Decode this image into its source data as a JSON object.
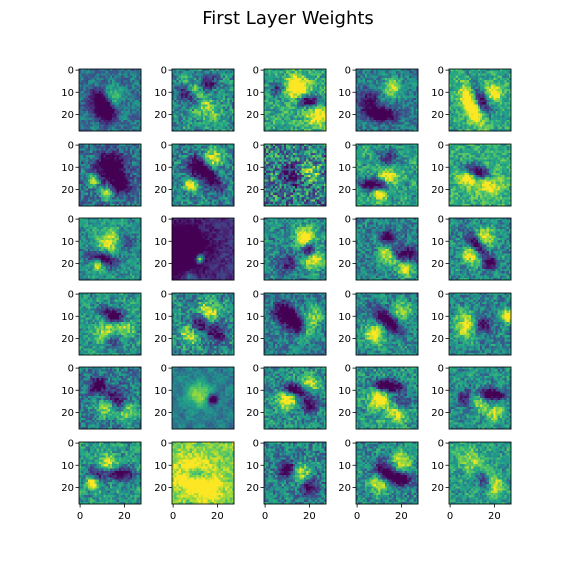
{
  "chart_data": {
    "type": "heatmap",
    "title": "First Layer Weights",
    "rows": 6,
    "cols": 5,
    "image_shape": [
      28,
      28
    ],
    "colormap": "viridis",
    "xlim": [
      0,
      27
    ],
    "ylim": [
      27,
      0
    ],
    "xticks": [
      "0",
      "20"
    ],
    "yticks": [
      "0",
      "10",
      "20"
    ],
    "panels": [
      {
        "dark": [
          [
            10,
            14,
            0.9,
            3.5,
            0
          ],
          [
            12,
            20,
            0.7,
            2.5,
            0
          ]
        ],
        "bright": [
          [
            14,
            12,
            0.6,
            3,
            0
          ]
        ],
        "base": 0.42,
        "noise": 0.12,
        "bgshift": 0.0
      },
      {
        "dark": [
          [
            8,
            12,
            0.7,
            2.5,
            0.6
          ],
          [
            16,
            6,
            0.5,
            2.5,
            0
          ]
        ],
        "bright": [
          [
            12,
            14,
            0.6,
            3,
            0.8
          ]
        ],
        "base": 0.52,
        "noise": 0.18,
        "bgshift": 0.05
      },
      {
        "dark": [
          [
            20,
            14,
            0.8,
            2,
            0.1
          ],
          [
            6,
            8,
            0.4,
            3,
            0
          ]
        ],
        "bright": [
          [
            14,
            8,
            0.7,
            4,
            0
          ],
          [
            24,
            20,
            0.5,
            4,
            0
          ]
        ],
        "base": 0.6,
        "noise": 0.18,
        "bgshift": 0.05
      },
      {
        "dark": [
          [
            11,
            20,
            0.9,
            2,
            0.05
          ],
          [
            5,
            14,
            0.5,
            3,
            0
          ]
        ],
        "bright": [
          [
            16,
            8,
            0.5,
            3,
            0
          ]
        ],
        "base": 0.45,
        "noise": 0.14,
        "bgshift": 0.0
      },
      {
        "dark": [
          [
            14,
            14,
            0.8,
            2,
            1.1
          ]
        ],
        "bright": [
          [
            10,
            16,
            0.7,
            3,
            1.1
          ],
          [
            20,
            10,
            0.5,
            3,
            0
          ]
        ],
        "base": 0.58,
        "noise": 0.16,
        "bgshift": 0.05
      },
      {
        "dark": [
          [
            14,
            10,
            0.8,
            4,
            0
          ],
          [
            18,
            18,
            0.6,
            3,
            0
          ]
        ],
        "bright": [
          [
            6,
            16,
            0.5,
            2,
            0
          ],
          [
            12,
            22,
            0.6,
            2,
            0
          ]
        ],
        "base": 0.4,
        "noise": 0.18,
        "bgshift": 0.0
      },
      {
        "dark": [
          [
            16,
            14,
            0.7,
            2.5,
            0.9
          ],
          [
            10,
            10,
            0.5,
            3,
            0
          ]
        ],
        "bright": [
          [
            8,
            18,
            0.7,
            2,
            0
          ],
          [
            18,
            6,
            0.5,
            3,
            0
          ]
        ],
        "base": 0.48,
        "noise": 0.18,
        "bgshift": 0.0
      },
      {
        "dark": [
          [
            12,
            14,
            0.4,
            3,
            0
          ]
        ],
        "bright": [
          [
            20,
            12,
            0.4,
            3,
            0
          ]
        ],
        "base": 0.45,
        "noise": 0.32,
        "bgshift": 0.0
      },
      {
        "dark": [
          [
            8,
            18,
            0.8,
            2,
            0.1
          ],
          [
            14,
            6,
            0.4,
            3,
            0
          ]
        ],
        "bright": [
          [
            10,
            22,
            0.7,
            2,
            0
          ],
          [
            14,
            14,
            0.5,
            3,
            0
          ]
        ],
        "base": 0.58,
        "noise": 0.16,
        "bgshift": 0.05
      },
      {
        "dark": [
          [
            12,
            12,
            0.9,
            2,
            0.3
          ]
        ],
        "bright": [
          [
            8,
            14,
            0.6,
            3,
            0
          ],
          [
            18,
            18,
            0.4,
            4,
            0
          ]
        ],
        "base": 0.62,
        "noise": 0.15,
        "bgshift": 0.1
      },
      {
        "dark": [
          [
            10,
            18,
            0.8,
            2,
            0.2
          ],
          [
            20,
            10,
            0.4,
            3,
            0
          ]
        ],
        "bright": [
          [
            8,
            20,
            0.7,
            2,
            0
          ],
          [
            14,
            10,
            0.5,
            4,
            0
          ]
        ],
        "base": 0.52,
        "noise": 0.14,
        "bgshift": 0.0
      },
      {
        "dark": [
          [
            4,
            14,
            0.6,
            8,
            0
          ]
        ],
        "bright": [
          [
            12,
            18,
            0.9,
            1.5,
            0
          ],
          [
            8,
            26,
            0.4,
            2,
            0
          ]
        ],
        "base": 0.2,
        "noise": 0.1,
        "bgshift": -0.1
      },
      {
        "dark": [
          [
            20,
            14,
            0.8,
            2,
            0
          ],
          [
            10,
            20,
            0.4,
            3,
            0
          ]
        ],
        "bright": [
          [
            18,
            8,
            0.7,
            3,
            0
          ],
          [
            22,
            18,
            0.6,
            3,
            0
          ]
        ],
        "base": 0.5,
        "noise": 0.16,
        "bgshift": 0.0
      },
      {
        "dark": [
          [
            14,
            8,
            0.7,
            2,
            0
          ],
          [
            22,
            16,
            0.6,
            2.5,
            0.2
          ]
        ],
        "bright": [
          [
            14,
            16,
            0.6,
            3,
            0
          ],
          [
            22,
            22,
            0.5,
            3,
            0
          ]
        ],
        "base": 0.47,
        "noise": 0.16,
        "bgshift": 0.0
      },
      {
        "dark": [
          [
            12,
            12,
            0.8,
            2,
            0.9
          ],
          [
            18,
            20,
            0.6,
            2,
            0
          ]
        ],
        "bright": [
          [
            10,
            16,
            0.6,
            3,
            0
          ],
          [
            16,
            8,
            0.5,
            3,
            0
          ]
        ],
        "base": 0.5,
        "noise": 0.16,
        "bgshift": 0.0
      },
      {
        "dark": [
          [
            16,
            10,
            0.8,
            2,
            0.4
          ],
          [
            14,
            20,
            0.5,
            3,
            0
          ]
        ],
        "bright": [
          [
            12,
            18,
            0.6,
            3,
            0
          ],
          [
            20,
            14,
            0.5,
            3,
            0
          ]
        ],
        "base": 0.55,
        "noise": 0.16,
        "bgshift": 0.0
      },
      {
        "dark": [
          [
            12,
            14,
            0.6,
            3,
            0
          ],
          [
            20,
            18,
            0.5,
            3,
            0
          ]
        ],
        "bright": [
          [
            8,
            18,
            0.5,
            3,
            0
          ],
          [
            16,
            8,
            0.5,
            3,
            0
          ]
        ],
        "base": 0.5,
        "noise": 0.2,
        "bgshift": 0.0
      },
      {
        "dark": [
          [
            14,
            14,
            0.8,
            2.5,
            0.9
          ],
          [
            8,
            8,
            0.5,
            3,
            0
          ]
        ],
        "bright": [
          [
            18,
            18,
            0.6,
            3,
            0
          ],
          [
            22,
            10,
            0.4,
            3,
            0
          ]
        ],
        "base": 0.45,
        "noise": 0.16,
        "bgshift": 0.0
      },
      {
        "dark": [
          [
            14,
            12,
            0.7,
            2.5,
            0.7
          ]
        ],
        "bright": [
          [
            8,
            18,
            0.6,
            3,
            0
          ],
          [
            20,
            8,
            0.4,
            3,
            0
          ]
        ],
        "base": 0.5,
        "noise": 0.16,
        "bgshift": 0.0
      },
      {
        "dark": [
          [
            14,
            14,
            0.6,
            3,
            0
          ]
        ],
        "bright": [
          [
            26,
            10,
            0.8,
            2,
            0
          ],
          [
            8,
            14,
            0.6,
            4,
            0
          ]
        ],
        "base": 0.48,
        "noise": 0.16,
        "bgshift": 0.0
      },
      {
        "dark": [
          [
            8,
            8,
            0.7,
            2.5,
            0
          ],
          [
            16,
            14,
            0.5,
            3,
            0
          ]
        ],
        "bright": [
          [
            12,
            18,
            0.5,
            3,
            0
          ],
          [
            22,
            20,
            0.4,
            3,
            0
          ]
        ],
        "base": 0.45,
        "noise": 0.17,
        "bgshift": 0.0
      },
      {
        "dark": [
          [
            18,
            14,
            0.8,
            1.5,
            0
          ]
        ],
        "bright": [
          [
            12,
            12,
            0.4,
            4,
            0
          ]
        ],
        "base": 0.45,
        "noise": 0.06,
        "bgshift": 0.0
      },
      {
        "dark": [
          [
            14,
            10,
            0.8,
            2,
            0.1
          ],
          [
            20,
            16,
            0.5,
            3,
            0
          ]
        ],
        "bright": [
          [
            10,
            14,
            0.6,
            3,
            0
          ],
          [
            20,
            8,
            0.5,
            3,
            0
          ]
        ],
        "base": 0.52,
        "noise": 0.17,
        "bgshift": 0.0
      },
      {
        "dark": [
          [
            14,
            8,
            0.8,
            2,
            0.1
          ],
          [
            20,
            16,
            0.4,
            3,
            0
          ]
        ],
        "bright": [
          [
            10,
            14,
            0.6,
            3,
            0
          ],
          [
            18,
            20,
            0.5,
            3,
            0
          ]
        ],
        "base": 0.55,
        "noise": 0.17,
        "bgshift": 0.0
      },
      {
        "dark": [
          [
            18,
            12,
            0.8,
            2,
            0.05
          ],
          [
            8,
            14,
            0.5,
            3,
            0
          ]
        ],
        "bright": [
          [
            12,
            14,
            0.6,
            3,
            0
          ],
          [
            20,
            20,
            0.4,
            3,
            0
          ]
        ],
        "base": 0.52,
        "noise": 0.16,
        "bgshift": 0.0
      },
      {
        "dark": [
          [
            18,
            14,
            0.7,
            2,
            0.1
          ],
          [
            8,
            14,
            0.5,
            3,
            0
          ]
        ],
        "bright": [
          [
            6,
            18,
            0.7,
            2,
            0
          ],
          [
            12,
            10,
            0.5,
            3,
            0
          ]
        ],
        "base": 0.55,
        "noise": 0.16,
        "bgshift": 0.0
      },
      {
        "dark": [
          [
            10,
            14,
            0.6,
            2,
            0.2
          ]
        ],
        "bright": [
          [
            8,
            14,
            0.5,
            5,
            0
          ],
          [
            16,
            20,
            0.4,
            4,
            0
          ]
        ],
        "base": 0.8,
        "noise": 0.12,
        "bgshift": 0.1
      },
      {
        "dark": [
          [
            10,
            12,
            0.7,
            2.5,
            0
          ],
          [
            20,
            20,
            0.5,
            3,
            0
          ]
        ],
        "bright": [
          [
            16,
            14,
            0.5,
            3,
            0
          ]
        ],
        "base": 0.48,
        "noise": 0.18,
        "bgshift": 0.0
      },
      {
        "dark": [
          [
            18,
            16,
            0.8,
            2,
            0.2
          ],
          [
            12,
            12,
            0.5,
            3,
            0
          ]
        ],
        "bright": [
          [
            10,
            18,
            0.5,
            3,
            0
          ],
          [
            20,
            8,
            0.5,
            3,
            0
          ]
        ],
        "base": 0.5,
        "noise": 0.17,
        "bgshift": 0.0
      },
      {
        "dark": [
          [
            14,
            16,
            0.8,
            2.2,
            1.0
          ]
        ],
        "bright": [
          [
            12,
            12,
            0.6,
            3,
            1.0
          ],
          [
            20,
            20,
            0.4,
            3,
            0
          ]
        ],
        "base": 0.55,
        "noise": 0.15,
        "bgshift": 0.0
      }
    ]
  }
}
